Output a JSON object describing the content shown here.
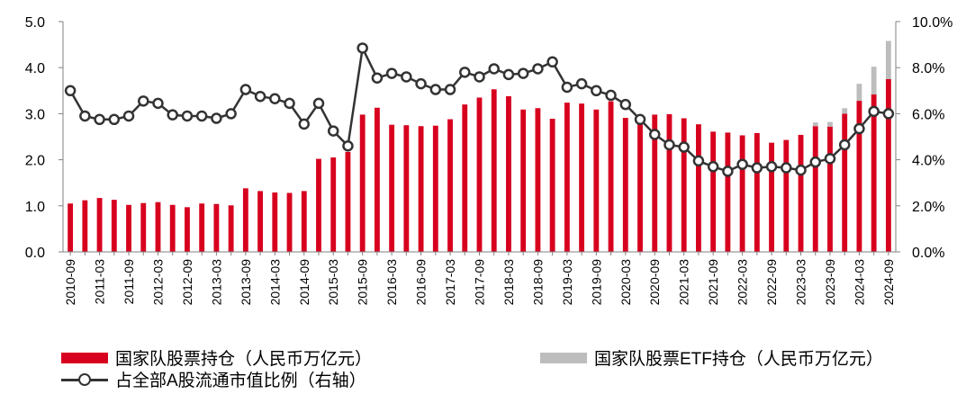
{
  "chart_data": {
    "type": "bar",
    "categories": [
      "2010-09",
      "2010-12",
      "2011-03",
      "2011-06",
      "2011-09",
      "2011-12",
      "2012-03",
      "2012-06",
      "2012-09",
      "2012-12",
      "2013-03",
      "2013-06",
      "2013-09",
      "2013-12",
      "2014-03",
      "2014-06",
      "2014-09",
      "2014-12",
      "2015-03",
      "2015-06",
      "2015-09",
      "2015-12",
      "2016-03",
      "2016-06",
      "2016-09",
      "2016-12",
      "2017-03",
      "2017-06",
      "2017-09",
      "2017-12",
      "2018-03",
      "2018-06",
      "2018-09",
      "2018-12",
      "2019-03",
      "2019-06",
      "2019-09",
      "2019-12",
      "2020-03",
      "2020-06",
      "2020-09",
      "2020-12",
      "2021-03",
      "2021-06",
      "2021-09",
      "2021-12",
      "2022-03",
      "2022-06",
      "2022-09",
      "2022-12",
      "2023-03",
      "2023-06",
      "2023-09",
      "2023-12",
      "2024-03",
      "2024-06",
      "2024-09"
    ],
    "xtick_labels": [
      "2010-09",
      "2011-03",
      "2011-09",
      "2012-03",
      "2012-09",
      "2013-03",
      "2013-09",
      "2014-03",
      "2014-09",
      "2015-03",
      "2015-09",
      "2016-03",
      "2016-09",
      "2017-03",
      "2017-09",
      "2018-03",
      "2018-09",
      "2019-03",
      "2019-09",
      "2020-03",
      "2020-09",
      "2021-03",
      "2021-09",
      "2022-03",
      "2022-09",
      "2023-03",
      "2023-09",
      "2024-03",
      "2024-09"
    ],
    "series": [
      {
        "name": "国家队股票持仓（人民币万亿元）",
        "type": "bar",
        "axis": "left",
        "color": "#d7001e",
        "values": [
          1.05,
          1.12,
          1.17,
          1.13,
          1.02,
          1.06,
          1.08,
          1.02,
          0.97,
          1.05,
          1.04,
          1.01,
          1.38,
          1.32,
          1.29,
          1.28,
          1.32,
          2.02,
          2.05,
          2.17,
          2.98,
          3.13,
          2.76,
          2.75,
          2.73,
          2.74,
          2.88,
          3.2,
          3.35,
          3.53,
          3.38,
          3.09,
          3.12,
          2.89,
          3.24,
          3.22,
          3.09,
          3.27,
          2.91,
          2.93,
          2.98,
          2.99,
          2.9,
          2.77,
          2.61,
          2.59,
          2.53,
          2.58,
          2.37,
          2.43,
          2.54,
          2.73,
          2.72,
          3.0,
          3.28,
          3.42,
          3.75
        ]
      },
      {
        "name": "国家队股票ETF持仓（人民币万亿元）",
        "type": "bar",
        "axis": "left",
        "color": "#bdbdbd",
        "values": [
          0,
          0,
          0,
          0,
          0,
          0,
          0,
          0,
          0,
          0,
          0,
          0,
          0,
          0,
          0,
          0,
          0,
          0,
          0,
          0,
          0,
          0,
          0,
          0,
          0,
          0,
          0,
          0,
          0,
          0,
          0,
          0,
          0,
          0,
          0,
          0,
          0,
          0,
          0,
          0,
          0,
          0,
          0,
          0,
          0,
          0,
          0,
          0,
          0,
          0,
          0,
          0.08,
          0.1,
          0.12,
          0.37,
          0.6,
          0.83
        ]
      },
      {
        "name": "占全部A股流通市值比例（右轴）",
        "type": "line",
        "axis": "right",
        "color": "#333333",
        "values": [
          7.0,
          5.9,
          5.75,
          5.75,
          5.9,
          6.55,
          6.45,
          5.95,
          5.9,
          5.9,
          5.8,
          6.0,
          7.05,
          6.75,
          6.65,
          6.45,
          5.55,
          6.45,
          5.25,
          4.6,
          8.85,
          7.55,
          7.75,
          7.6,
          7.3,
          7.05,
          7.05,
          7.8,
          7.6,
          7.95,
          7.7,
          7.75,
          7.95,
          8.25,
          7.15,
          7.3,
          7.0,
          6.8,
          6.4,
          5.75,
          5.1,
          4.65,
          4.55,
          3.95,
          3.7,
          3.5,
          3.8,
          3.65,
          3.7,
          3.65,
          3.55,
          3.9,
          4.05,
          4.65,
          5.35,
          6.1,
          6.0
        ]
      }
    ],
    "left_axis": {
      "ylim": [
        0,
        5
      ],
      "ticks": [
        "0.0",
        "1.0",
        "2.0",
        "3.0",
        "4.0",
        "5.0"
      ]
    },
    "right_axis": {
      "ylim": [
        0,
        10
      ],
      "ticks": [
        "0.0%",
        "2.0%",
        "4.0%",
        "6.0%",
        "8.0%",
        "10.0%"
      ]
    },
    "legend_position": "bottom",
    "grid": false
  },
  "legend": {
    "bar1": "国家队股票持仓（人民币万亿元）",
    "bar2": "国家队股票ETF持仓（人民币万亿元）",
    "line": "占全部A股流通市值比例（右轴）"
  }
}
